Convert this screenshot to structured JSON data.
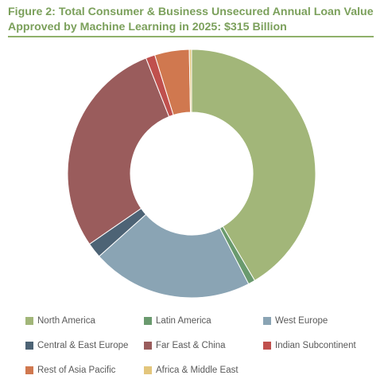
{
  "chart_data": {
    "type": "pie",
    "title": "Figure 2: Total Consumer & Business Unsecured Annual Loan Value Approved by Machine Learning in 2025: $315 Billion",
    "categories": [
      "North America",
      "Latin America",
      "West Europe",
      "Central & East Europe",
      "Far East & China",
      "Indian Subcontinent",
      "Rest of Asia Pacific",
      "Africa & Middle East"
    ],
    "values": [
      41.5,
      0.9,
      21.0,
      2.0,
      28.6,
      1.2,
      4.5,
      0.3
    ],
    "colors": [
      "#a2b679",
      "#6a9a6e",
      "#8aa4b4",
      "#4d6375",
      "#9a5c5c",
      "#c0504d",
      "#d0784f",
      "#e3c67c"
    ],
    "legend_position": "bottom",
    "donut": true
  }
}
